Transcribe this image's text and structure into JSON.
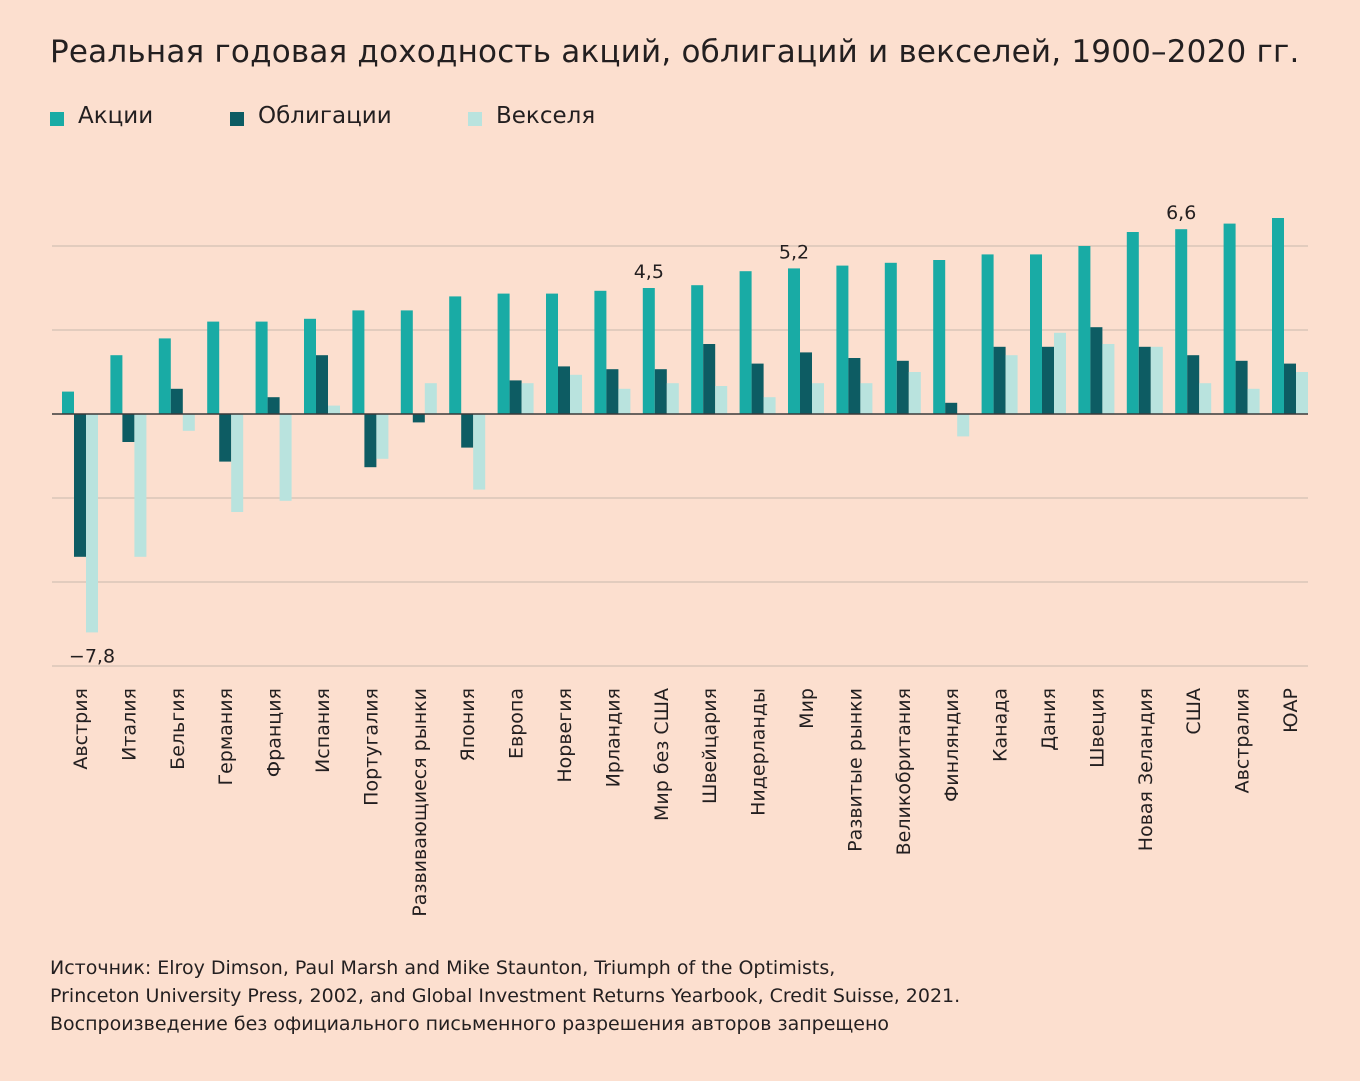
{
  "title": "Реальная годовая доходность акций, облигаций и векселей, 1900–2020 гг.",
  "colors": {
    "background": "#fcdfcf",
    "stocks": "#19aba5",
    "bonds": "#0d5c63",
    "bills": "#b9e3de",
    "grid": "#c9b8ad",
    "axis": "#3a3a3a",
    "text": "#231f20"
  },
  "chart_data": {
    "type": "bar",
    "title": "Реальная годовая доходность акций, облигаций и векселей, 1900–2020 гг.",
    "xlabel": "",
    "ylabel": "",
    "ylim": [
      -9,
      6.6
    ],
    "gridlines": [
      -9,
      -6,
      -3,
      0,
      3,
      6
    ],
    "grid": true,
    "legend_position": "top-left",
    "categories": [
      "Австрия",
      "Италия",
      "Бельгия",
      "Германия",
      "Франция",
      "Испания",
      "Португалия",
      "Развивающиеся рынки",
      "Япония",
      "Европа",
      "Норвегия",
      "Ирландия",
      "Мир без США",
      "Швейцария",
      "Нидерланды",
      "Мир",
      "Развитые рынки",
      "Великобритания",
      "Финляндия",
      "Канада",
      "Дания",
      "Швеция",
      "Новая Зеландия",
      "США",
      "Австралия",
      "ЮАР"
    ],
    "series": [
      {
        "name": "Акции",
        "values": [
          0.8,
          2.1,
          2.7,
          3.3,
          3.3,
          3.4,
          3.7,
          3.7,
          4.2,
          4.3,
          4.3,
          4.4,
          4.5,
          4.6,
          5.1,
          5.2,
          5.3,
          5.4,
          5.5,
          5.7,
          5.7,
          6.0,
          6.5,
          6.6,
          6.8,
          7.0
        ]
      },
      {
        "name": "Облигации",
        "values": [
          -5.1,
          -1.0,
          0.9,
          -1.7,
          0.6,
          2.1,
          -1.9,
          -0.3,
          -1.2,
          1.2,
          1.7,
          1.6,
          1.6,
          2.5,
          1.8,
          2.2,
          2.0,
          1.9,
          0.4,
          2.4,
          2.4,
          3.1,
          2.4,
          2.1,
          1.9,
          1.8
        ]
      },
      {
        "name": "Векселя",
        "values": [
          -7.8,
          -5.1,
          -0.6,
          -3.5,
          -3.1,
          0.3,
          -1.6,
          1.1,
          -2.7,
          1.1,
          1.4,
          0.9,
          1.1,
          1.0,
          0.6,
          1.1,
          1.1,
          1.5,
          -0.8,
          2.1,
          2.9,
          2.5,
          2.4,
          1.1,
          0.9,
          1.5
        ]
      }
    ],
    "annotations": [
      {
        "category": "Австрия",
        "series": "Векселя",
        "text": "−7,8"
      },
      {
        "category": "Мир без США",
        "series": "Акции",
        "text": "4,5"
      },
      {
        "category": "Мир",
        "series": "Акции",
        "text": "5,2"
      },
      {
        "category": "США",
        "series": "Акции",
        "text": "6,6"
      }
    ]
  },
  "source_lines": [
    "Источник: Elroy Dimson, Paul Marsh and Mike Staunton, Triumph of the Optimists,",
    "Princeton University Press, 2002, and Global Investment Returns Yearbook, Credit Suisse, 2021.",
    "Воспроизведение без официального письменного разрешения авторов запрещено"
  ]
}
